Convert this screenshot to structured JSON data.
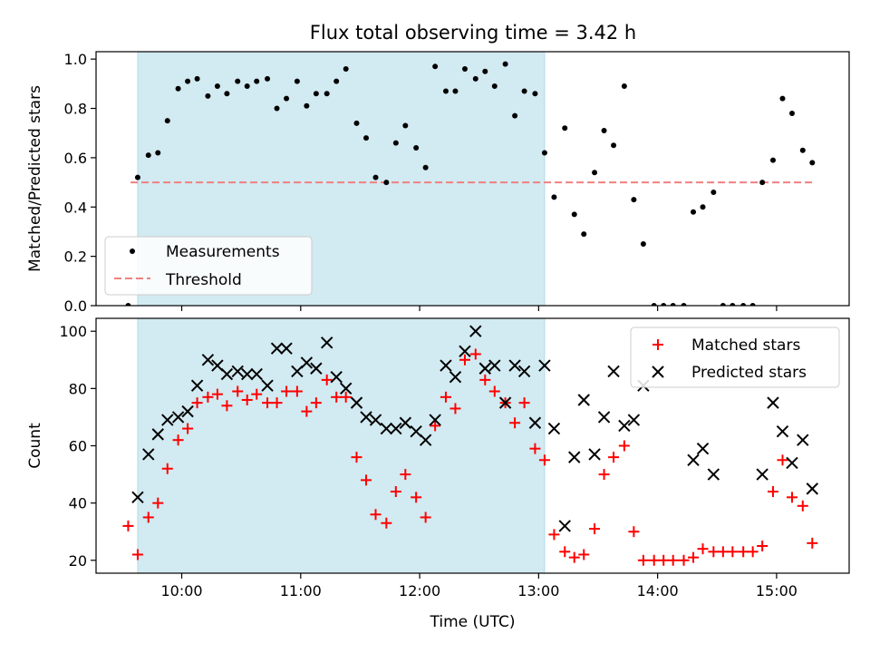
{
  "title": "Flux total observing time = 3.42 h",
  "chart_data": [
    {
      "type": "scatter",
      "ylabel": "Matched/Predicted stars",
      "xlim": [
        9.28,
        15.61
      ],
      "ylim": [
        0,
        1.03
      ],
      "shaded_span": [
        9.63,
        13.05
      ],
      "shaded_color": "#add8e6",
      "legend": {
        "placement": "lower-left",
        "labels": {
          "measurements": "Measurements",
          "threshold": "Threshold"
        }
      },
      "yticks": [
        0,
        0.2,
        0.4,
        0.6,
        0.8,
        1.0
      ],
      "ytick_labels": [
        "0.0",
        "0.2",
        "0.4",
        "0.6",
        "0.8",
        "1.0"
      ],
      "xticks": [
        10,
        11,
        12,
        13,
        14,
        15
      ],
      "threshold": {
        "name": "Threshold",
        "y": 0.5,
        "x_range": [
          9.57,
          15.3
        ],
        "color": "#f08080"
      },
      "series": [
        {
          "name": "Measurements",
          "color": "#000000",
          "x": [
            9.55,
            9.63,
            9.72,
            9.8,
            9.88,
            9.97,
            10.05,
            10.13,
            10.22,
            10.3,
            10.38,
            10.47,
            10.55,
            10.63,
            10.72,
            10.8,
            10.88,
            10.97,
            11.05,
            11.13,
            11.22,
            11.3,
            11.38,
            11.47,
            11.55,
            11.63,
            11.72,
            11.8,
            11.88,
            11.97,
            12.05,
            12.13,
            12.22,
            12.3,
            12.38,
            12.47,
            12.55,
            12.63,
            12.72,
            12.8,
            12.88,
            12.97,
            13.05,
            13.13,
            13.22,
            13.3,
            13.38,
            13.47,
            13.55,
            13.63,
            13.72,
            13.8,
            13.88,
            13.97,
            14.05,
            14.13,
            14.22,
            14.3,
            14.38,
            14.47,
            14.55,
            14.63,
            14.72,
            14.8,
            14.88,
            14.97,
            15.05,
            15.13,
            15.22,
            15.3
          ],
          "y": [
            0.0,
            0.52,
            0.61,
            0.62,
            0.75,
            0.88,
            0.91,
            0.92,
            0.85,
            0.89,
            0.86,
            0.91,
            0.89,
            0.91,
            0.92,
            0.8,
            0.84,
            0.91,
            0.81,
            0.86,
            0.86,
            0.91,
            0.96,
            0.74,
            0.68,
            0.52,
            0.5,
            0.66,
            0.73,
            0.64,
            0.56,
            0.97,
            0.87,
            0.87,
            0.96,
            0.92,
            0.95,
            0.89,
            0.98,
            0.77,
            0.87,
            0.86,
            0.62,
            0.44,
            0.72,
            0.37,
            0.29,
            0.54,
            0.71,
            0.65,
            0.89,
            0.43,
            0.25,
            0.0,
            0.0,
            0.0,
            0.0,
            0.38,
            0.4,
            0.46,
            0.0,
            0.0,
            0.0,
            0.0,
            0.5,
            0.59,
            0.84,
            0.78,
            0.63,
            0.58
          ]
        }
      ]
    },
    {
      "type": "scatter",
      "xlabel": "Time (UTC)",
      "ylabel": "Count",
      "xlim": [
        9.28,
        15.61
      ],
      "ylim": [
        15.5,
        104.5
      ],
      "shaded_span": [
        9.63,
        13.05
      ],
      "shaded_color": "#add8e6",
      "legend": {
        "placement": "top-right"
      },
      "yticks": [
        20,
        40,
        60,
        80,
        100
      ],
      "ytick_labels": [
        "20",
        "40",
        "60",
        "80",
        "100"
      ],
      "xticks": [
        10,
        11,
        12,
        13,
        14,
        15
      ],
      "xtick_labels": [
        "10:00",
        "11:00",
        "12:00",
        "13:00",
        "14:00",
        "15:00"
      ],
      "series": [
        {
          "name": "Matched stars",
          "marker": "+",
          "color": "#ff0000",
          "x": [
            9.55,
            9.63,
            9.72,
            9.8,
            9.88,
            9.97,
            10.05,
            10.13,
            10.22,
            10.3,
            10.38,
            10.47,
            10.55,
            10.63,
            10.72,
            10.8,
            10.88,
            10.97,
            11.05,
            11.13,
            11.22,
            11.3,
            11.38,
            11.47,
            11.55,
            11.63,
            11.72,
            11.8,
            11.88,
            11.97,
            12.05,
            12.13,
            12.22,
            12.3,
            12.38,
            12.47,
            12.55,
            12.63,
            12.72,
            12.8,
            12.88,
            12.97,
            13.05,
            13.13,
            13.22,
            13.3,
            13.38,
            13.47,
            13.55,
            13.63,
            13.72,
            13.8,
            13.88,
            13.97,
            14.05,
            14.13,
            14.22,
            14.3,
            14.38,
            14.47,
            14.55,
            14.63,
            14.72,
            14.8,
            14.88,
            14.97,
            15.05,
            15.13,
            15.22,
            15.3
          ],
          "y": [
            32,
            22,
            35,
            40,
            52,
            62,
            66,
            75,
            77,
            78,
            74,
            79,
            76,
            78,
            75,
            75,
            79,
            79,
            72,
            75,
            83,
            77,
            77,
            56,
            48,
            36,
            33,
            44,
            50,
            42,
            35,
            67,
            77,
            73,
            90,
            92,
            83,
            79,
            75,
            68,
            75,
            59,
            55,
            29,
            23,
            21,
            22,
            31,
            50,
            56,
            60,
            30,
            20,
            20,
            20,
            20,
            20,
            21,
            24,
            23,
            23,
            23,
            23,
            23,
            25,
            44,
            55,
            42,
            39,
            26
          ]
        },
        {
          "name": "Predicted stars",
          "marker": "x",
          "color": "#000000",
          "x": [
            9.63,
            9.72,
            9.8,
            9.88,
            9.97,
            10.05,
            10.13,
            10.22,
            10.3,
            10.38,
            10.47,
            10.55,
            10.63,
            10.72,
            10.8,
            10.88,
            10.97,
            11.05,
            11.13,
            11.22,
            11.3,
            11.38,
            11.47,
            11.55,
            11.63,
            11.72,
            11.8,
            11.88,
            11.97,
            12.05,
            12.13,
            12.22,
            12.3,
            12.38,
            12.47,
            12.55,
            12.63,
            12.72,
            12.8,
            12.88,
            12.97,
            13.05,
            13.13,
            13.22,
            13.3,
            13.38,
            13.47,
            13.55,
            13.63,
            13.72,
            13.8,
            13.88,
            14.3,
            14.38,
            14.47,
            14.88,
            14.97,
            15.05,
            15.13,
            15.22,
            15.3
          ],
          "y": [
            42,
            57,
            64,
            69,
            70,
            72,
            81,
            90,
            88,
            85,
            86,
            85,
            85,
            81,
            94,
            94,
            86,
            89,
            87,
            96,
            84,
            80,
            75,
            70,
            69,
            66,
            66,
            68,
            65,
            62,
            69,
            88,
            84,
            93,
            100,
            87,
            88,
            75,
            88,
            86,
            68,
            88,
            66,
            32,
            56,
            76,
            57,
            70,
            86,
            67,
            69,
            81,
            55,
            59,
            50,
            50,
            75,
            65,
            54,
            62,
            45
          ]
        }
      ]
    }
  ]
}
